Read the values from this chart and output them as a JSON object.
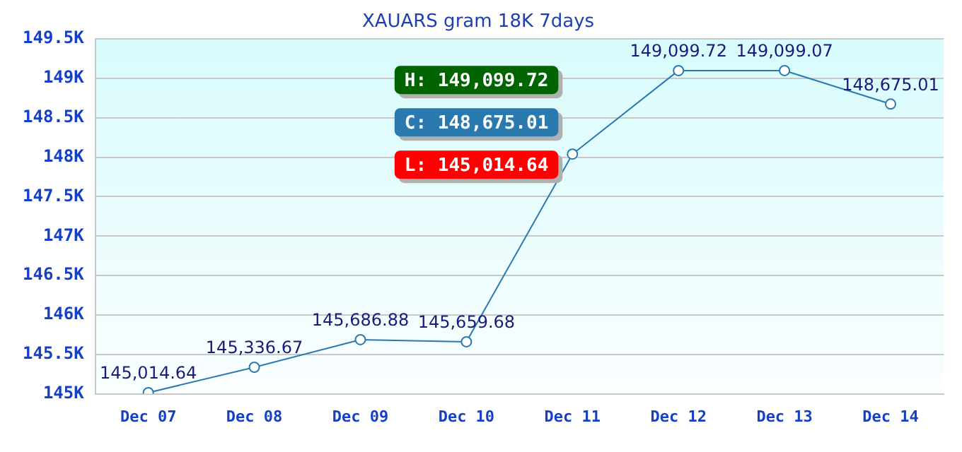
{
  "chart_data": {
    "type": "line",
    "title": "XAUARS gram 18K 7days",
    "categories": [
      "Dec 07",
      "Dec 08",
      "Dec 09",
      "Dec 10",
      "Dec 11",
      "Dec 12",
      "Dec 13",
      "Dec 14"
    ],
    "series": [
      {
        "color": "#2a7ab0",
        "values": [
          145014.64,
          145336.67,
          145686.88,
          145659.68,
          148040,
          149099.72,
          149099.07,
          148675.01
        ],
        "value_labels": [
          "145,014.64",
          "145,336.67",
          "145,686.88",
          "145,659.68",
          null,
          "149,099.72",
          "149,099.07",
          "148,675.01"
        ]
      }
    ],
    "ylim": [
      145000,
      149500
    ],
    "yticks": [
      {
        "value": 145000,
        "label": "145K"
      },
      {
        "value": 145500,
        "label": "145.5K"
      },
      {
        "value": 146000,
        "label": "146K"
      },
      {
        "value": 146500,
        "label": "146.5K"
      },
      {
        "value": 147000,
        "label": "147K"
      },
      {
        "value": 147500,
        "label": "147.5K"
      },
      {
        "value": 148000,
        "label": "148K"
      },
      {
        "value": 148500,
        "label": "148.5K"
      },
      {
        "value": 149000,
        "label": "149K"
      },
      {
        "value": 149500,
        "label": "149.5K"
      }
    ],
    "grid": "y",
    "marker": "circle",
    "line_style": "solid",
    "legend": false,
    "annotations": [
      "H: 149,099.72",
      "C: 148,675.01",
      "L: 145,014.64"
    ]
  }
}
